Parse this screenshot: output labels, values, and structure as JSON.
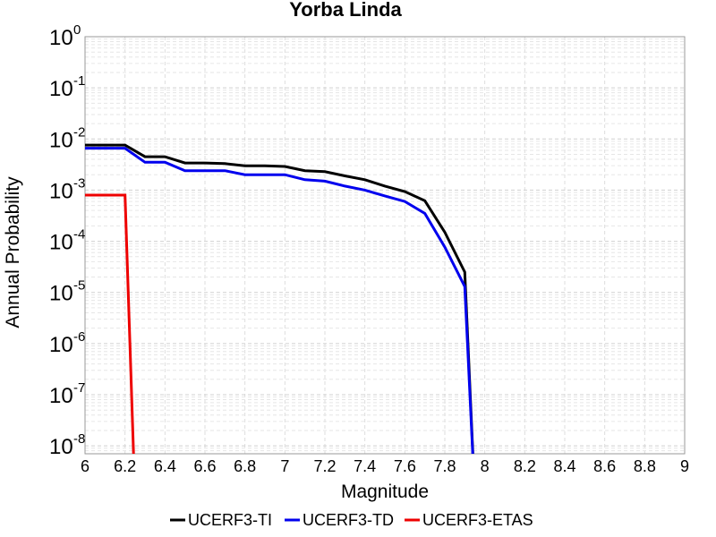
{
  "chart_data": {
    "type": "line",
    "title": "Yorba Linda",
    "xlabel": "Magnitude",
    "ylabel": "Annual Probability",
    "xlim": [
      6,
      9
    ],
    "ylim": [
      7e-09,
      1
    ],
    "yscale": "log",
    "grid": true,
    "legend_position": "bottom",
    "x_ticks": [
      "6",
      "6.2",
      "6.4",
      "6.6",
      "6.8",
      "7",
      "7.2",
      "7.4",
      "7.6",
      "7.8",
      "8",
      "8.2",
      "8.4",
      "8.6",
      "8.8",
      "9"
    ],
    "y_ticks": [
      {
        "base": "10",
        "exp": "-8",
        "value": 1e-08
      },
      {
        "base": "10",
        "exp": "-7",
        "value": 1e-07
      },
      {
        "base": "10",
        "exp": "-6",
        "value": 1e-06
      },
      {
        "base": "10",
        "exp": "-5",
        "value": 1e-05
      },
      {
        "base": "10",
        "exp": "-4",
        "value": 0.0001
      },
      {
        "base": "10",
        "exp": "-3",
        "value": 0.001
      },
      {
        "base": "10",
        "exp": "-2",
        "value": 0.01
      },
      {
        "base": "10",
        "exp": "-1",
        "value": 0.1
      },
      {
        "base": "10",
        "exp": "0",
        "value": 1
      }
    ],
    "series": [
      {
        "name": "UCERF3-TI",
        "color": "#000000",
        "x": [
          6.0,
          6.1,
          6.2,
          6.3,
          6.4,
          6.5,
          6.6,
          6.7,
          6.8,
          6.9,
          7.0,
          7.1,
          7.2,
          7.3,
          7.4,
          7.5,
          7.6,
          7.7,
          7.8,
          7.9,
          7.95
        ],
        "y": [
          0.0076,
          0.0076,
          0.0076,
          0.0045,
          0.0045,
          0.0034,
          0.0034,
          0.0033,
          0.003,
          0.003,
          0.0029,
          0.0024,
          0.0023,
          0.0019,
          0.0016,
          0.0012,
          0.00094,
          0.00062,
          0.00015,
          2.5e-05,
          1e-09
        ]
      },
      {
        "name": "UCERF3-TD",
        "color": "#0000ee",
        "x": [
          6.0,
          6.1,
          6.2,
          6.3,
          6.4,
          6.5,
          6.6,
          6.7,
          6.8,
          6.9,
          7.0,
          7.1,
          7.2,
          7.3,
          7.4,
          7.5,
          7.6,
          7.7,
          7.8,
          7.9,
          7.95
        ],
        "y": [
          0.0066,
          0.0066,
          0.0066,
          0.0035,
          0.0035,
          0.0024,
          0.0024,
          0.0024,
          0.002,
          0.002,
          0.002,
          0.0016,
          0.0015,
          0.0012,
          0.001,
          0.00077,
          0.0006,
          0.00035,
          7.7e-05,
          1.3e-05,
          1e-09
        ]
      },
      {
        "name": "UCERF3-ETAS",
        "color": "#ee0000",
        "x": [
          6.0,
          6.2,
          6.25
        ],
        "y": [
          0.0008,
          0.0008,
          1e-09
        ]
      }
    ]
  }
}
